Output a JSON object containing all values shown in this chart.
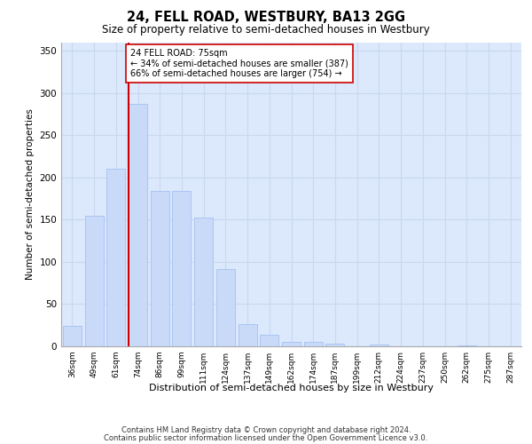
{
  "title1": "24, FELL ROAD, WESTBURY, BA13 2GG",
  "title2": "Size of property relative to semi-detached houses in Westbury",
  "xlabel": "Distribution of semi-detached houses by size in Westbury",
  "ylabel": "Number of semi-detached properties",
  "categories": [
    "36sqm",
    "49sqm",
    "61sqm",
    "74sqm",
    "86sqm",
    "99sqm",
    "111sqm",
    "124sqm",
    "137sqm",
    "149sqm",
    "162sqm",
    "174sqm",
    "187sqm",
    "199sqm",
    "212sqm",
    "224sqm",
    "237sqm",
    "250sqm",
    "262sqm",
    "275sqm",
    "287sqm"
  ],
  "values": [
    24,
    155,
    210,
    287,
    184,
    184,
    152,
    91,
    26,
    14,
    5,
    5,
    3,
    0,
    2,
    0,
    0,
    0,
    1,
    0,
    0
  ],
  "bar_color": "#c9daf8",
  "bar_edge_color": "#a4c2f4",
  "grid_color": "#c8d8f0",
  "background_color": "#dce8fb",
  "property_bin_index": 3,
  "annotation_title": "24 FELL ROAD: 75sqm",
  "annotation_line1": "← 34% of semi-detached houses are smaller (387)",
  "annotation_line2": "66% of semi-detached houses are larger (754) →",
  "vline_color": "#cc0000",
  "annotation_box_facecolor": "#ffffff",
  "annotation_box_edgecolor": "#cc0000",
  "footer1": "Contains HM Land Registry data © Crown copyright and database right 2024.",
  "footer2": "Contains public sector information licensed under the Open Government Licence v3.0.",
  "ylim": [
    0,
    360
  ],
  "yticks": [
    0,
    50,
    100,
    150,
    200,
    250,
    300,
    350
  ]
}
